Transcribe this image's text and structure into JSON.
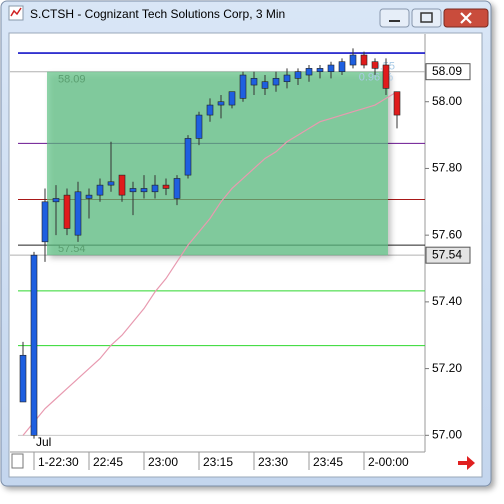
{
  "chart_data": {
    "type": "candlestick",
    "title": "S.CTSH - Cognizant Tech Solutions Corp, 3 Min",
    "categories": [
      null,
      "1-22:30",
      null,
      null,
      null,
      null,
      "22:45",
      null,
      null,
      null,
      null,
      "23:00",
      null,
      null,
      null,
      null,
      "23:15",
      null,
      null,
      null,
      null,
      "23:30",
      null,
      null,
      null,
      null,
      "23:45",
      null,
      null,
      null,
      null,
      "2-00:00",
      null,
      null,
      null
    ],
    "open": [
      57.1,
      57.0,
      57.58,
      57.7,
      57.72,
      57.6,
      57.71,
      57.72,
      57.75,
      57.78,
      57.73,
      57.73,
      57.73,
      57.75,
      57.71,
      57.78,
      57.89,
      57.96,
      57.99,
      57.99,
      58.01,
      58.05,
      58.04,
      58.05,
      58.06,
      58.07,
      58.08,
      58.09,
      58.09,
      58.09,
      58.11,
      58.14,
      58.12,
      58.11,
      58.03
    ],
    "high": [
      57.28,
      57.55,
      57.74,
      57.75,
      57.74,
      57.76,
      57.74,
      57.77,
      57.88,
      57.78,
      57.76,
      57.78,
      57.78,
      57.77,
      57.78,
      57.9,
      57.97,
      58.01,
      58.02,
      58.03,
      58.09,
      58.09,
      58.08,
      58.09,
      58.1,
      58.1,
      58.11,
      58.11,
      58.12,
      58.13,
      58.16,
      58.15,
      58.13,
      58.13,
      58.03
    ],
    "low": [
      57.1,
      56.99,
      57.52,
      57.6,
      57.6,
      57.58,
      57.65,
      57.7,
      57.73,
      57.7,
      57.66,
      57.71,
      57.71,
      57.72,
      57.69,
      57.77,
      57.87,
      57.94,
      57.95,
      57.98,
      58.0,
      58.02,
      58.02,
      58.03,
      58.04,
      58.05,
      58.06,
      58.07,
      58.07,
      58.08,
      58.1,
      58.1,
      58.08,
      58.02,
      57.92
    ],
    "close": [
      57.24,
      57.54,
      57.7,
      57.71,
      57.62,
      57.73,
      57.72,
      57.75,
      57.76,
      57.72,
      57.74,
      57.74,
      57.75,
      57.74,
      57.77,
      57.89,
      57.96,
      57.99,
      58.0,
      58.03,
      58.08,
      58.07,
      58.06,
      58.07,
      58.08,
      58.09,
      58.1,
      58.1,
      58.11,
      58.12,
      58.14,
      58.11,
      58.1,
      58.04,
      57.96
    ],
    "up_color": "#1e5fe0",
    "down_color": "#e01c1c",
    "moving_average": {
      "color": "#e89ab0",
      "values": [
        57.0,
        57.04,
        57.08,
        57.11,
        57.14,
        57.17,
        57.2,
        57.23,
        57.27,
        57.3,
        57.34,
        57.38,
        57.43,
        57.47,
        57.52,
        57.57,
        57.61,
        57.65,
        57.7,
        57.74,
        57.77,
        57.8,
        57.83,
        57.85,
        57.88,
        57.9,
        57.92,
        57.94,
        57.95,
        57.96,
        57.97,
        57.98,
        57.99,
        58.01,
        58.03
      ]
    },
    "hlines": [
      {
        "value": 58.146,
        "color": "#1414c8"
      },
      {
        "value": 57.875,
        "color": "#6a1590"
      },
      {
        "value": 57.707,
        "color": "#a81818"
      },
      {
        "value": 57.57,
        "color": "#222222"
      },
      {
        "value": 57.433,
        "color": "#2ed82e"
      },
      {
        "value": 57.269,
        "color": "#2ed82e"
      },
      {
        "value": 57.0,
        "color": "#c8c8c8"
      }
    ],
    "range_box": {
      "top": 58.09,
      "bottom": 57.54,
      "change": 0.55,
      "percent": {
        "value": 0.96,
        "label": "0.96 %"
      },
      "color": "#5cbf82"
    },
    "price_markers": [
      58.09,
      57.54
    ],
    "annotations": [
      "Jul"
    ],
    "ylim": [
      56.95,
      58.2
    ],
    "yticks": [
      {
        "value": 57.0,
        "label": "57.00"
      },
      {
        "value": 57.2,
        "label": "57.20"
      },
      {
        "value": 57.4,
        "label": "57.40"
      },
      {
        "value": 57.6,
        "label": "57.60"
      },
      {
        "value": 57.8,
        "label": "57.80"
      },
      {
        "value": 58.0,
        "label": "58.00"
      }
    ]
  }
}
